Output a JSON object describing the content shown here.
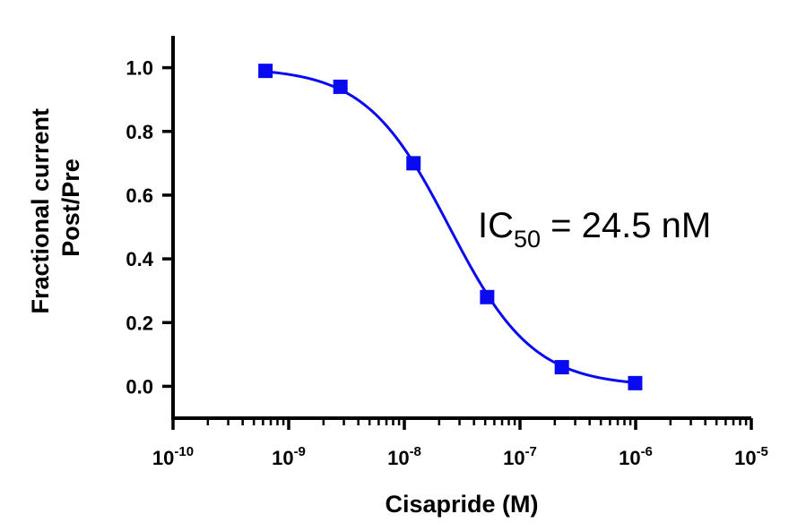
{
  "chart_data": {
    "type": "scatter",
    "xscale": "log",
    "xlabel": "Cisapride (M)",
    "ylabel_lines": [
      "Fractional current",
      "Post/Pre"
    ],
    "xlim": [
      1e-10,
      1e-05
    ],
    "ylim": [
      -0.1,
      1.1
    ],
    "x_ticks": [
      {
        "base": "10",
        "exp": "-10",
        "value": 1e-10
      },
      {
        "base": "10",
        "exp": "-9",
        "value": 1e-09
      },
      {
        "base": "10",
        "exp": "-8",
        "value": 1e-08
      },
      {
        "base": "10",
        "exp": "-7",
        "value": 1e-07
      },
      {
        "base": "10",
        "exp": "-6",
        "value": 1e-06
      },
      {
        "base": "10",
        "exp": "-5",
        "value": 1e-05
      }
    ],
    "y_ticks": [
      {
        "label": "0.0",
        "value": 0.0
      },
      {
        "label": "0.2",
        "value": 0.2
      },
      {
        "label": "0.4",
        "value": 0.4
      },
      {
        "label": "0.6",
        "value": 0.6
      },
      {
        "label": "0.8",
        "value": 0.8
      },
      {
        "label": "1.0",
        "value": 1.0
      }
    ],
    "series": [
      {
        "color": "#0a0af0",
        "marker": "square",
        "points": [
          {
            "x": 6.3e-10,
            "y": 0.99
          },
          {
            "x": 2.8e-09,
            "y": 0.94
          },
          {
            "x": 1.2e-08,
            "y": 0.7
          },
          {
            "x": 5.2e-08,
            "y": 0.28
          },
          {
            "x": 2.3e-07,
            "y": 0.06
          },
          {
            "x": 9.9e-07,
            "y": 0.01
          }
        ]
      }
    ],
    "fit": {
      "top": 1.0,
      "bottom": 0.0,
      "ic50": 2.45e-08,
      "hill": 1.2
    },
    "annotation": {
      "prefix": "IC",
      "subscript": "50",
      "suffix": " = 24.5 nM"
    }
  }
}
